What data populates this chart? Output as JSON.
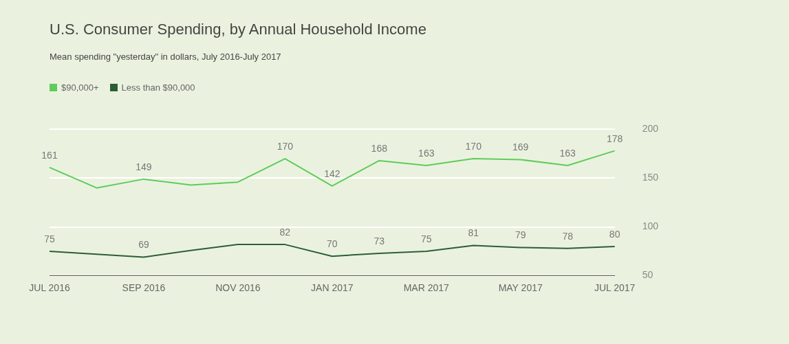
{
  "chart_data": {
    "type": "line",
    "title": "U.S. Consumer Spending, by Annual Household Income",
    "subtitle": "Mean spending \"yesterday\" in dollars, July 2016-July 2017",
    "categories": [
      "JUL 2016",
      null,
      "SEP 2016",
      null,
      "NOV 2016",
      null,
      "JAN 2017",
      null,
      "MAR 2017",
      null,
      "MAY 2017",
      null,
      "JUL 2017"
    ],
    "series": [
      {
        "name": "$90,000+",
        "color": "#5fcc5a",
        "values": [
          161,
          140,
          149,
          143,
          146,
          170,
          142,
          168,
          163,
          170,
          169,
          163,
          178
        ],
        "value_labels": [
          "161",
          null,
          "149",
          null,
          null,
          "170",
          "142",
          "168",
          "163",
          "170",
          "169",
          "163",
          "178"
        ]
      },
      {
        "name": "Less than $90,000",
        "color": "#2c5e35",
        "values": [
          75,
          72,
          69,
          76,
          82,
          82,
          70,
          73,
          75,
          81,
          79,
          78,
          80
        ],
        "value_labels": [
          "75",
          null,
          "69",
          null,
          null,
          "82",
          "70",
          "73",
          "75",
          "81",
          "79",
          "78",
          "80"
        ]
      }
    ],
    "ylim": [
      50,
      200
    ],
    "yticks": [
      50,
      100,
      150,
      200
    ],
    "grid": "y",
    "legend": "top left",
    "marker": "none",
    "line_style": "solid"
  }
}
